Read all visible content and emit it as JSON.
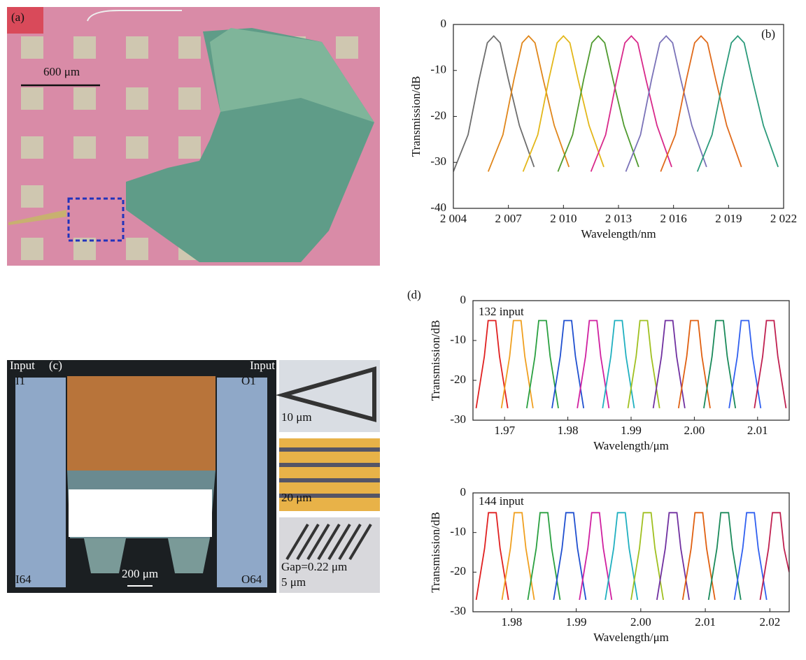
{
  "panels": {
    "a": {
      "label": "(a)",
      "scale": "600 μm"
    },
    "c": {
      "label": "(c)",
      "input_left": "Input",
      "input_right": "Input",
      "i1": "I1",
      "o1": "O1",
      "i64": "I64",
      "o64": "O64",
      "scale_main": "200 μm",
      "scale_1": "10 μm",
      "scale_2": "20 μm",
      "gap": "Gap=0.22 μm",
      "scale_3": "5 μm"
    }
  },
  "chart_data": [
    {
      "type": "line",
      "panel_label": "(b)",
      "xlabel": "Wavelength/nm",
      "ylabel": "Transmission/dB",
      "xlim": [
        2004,
        2022
      ],
      "ylim": [
        -40,
        0
      ],
      "xticks": [
        {
          "value": 2004,
          "label": "2 004"
        },
        {
          "value": 2007,
          "label": "2 007"
        },
        {
          "value": 2010,
          "label": "2 010"
        },
        {
          "value": 2013,
          "label": "2 013"
        },
        {
          "value": 2016,
          "label": "2 016"
        },
        {
          "value": 2019,
          "label": "2 019"
        },
        {
          "value": 2022,
          "label": "2 022"
        }
      ],
      "yticks": [
        -40,
        -30,
        -20,
        -10,
        0
      ],
      "series": [
        {
          "color": "#6d6d6d",
          "x": [
            2004.0,
            2004.8,
            2005.4,
            2005.85,
            2006.2,
            2006.55,
            2007.0,
            2007.6,
            2008.4
          ],
          "values": [
            -32,
            -24,
            -12,
            -4,
            -2.5,
            -4,
            -12,
            -22,
            -31
          ]
        },
        {
          "color": "#e0861a",
          "x": [
            2005.9,
            2006.7,
            2007.3,
            2007.75,
            2008.1,
            2008.45,
            2008.9,
            2009.5,
            2010.3
          ],
          "values": [
            -32,
            -24,
            -12,
            -4,
            -2.5,
            -4,
            -12,
            -22,
            -31
          ]
        },
        {
          "color": "#e3b719",
          "x": [
            2007.8,
            2008.6,
            2009.2,
            2009.65,
            2010.0,
            2010.35,
            2010.8,
            2011.4,
            2012.2
          ],
          "values": [
            -32,
            -24,
            -12,
            -4,
            -2.5,
            -4,
            -12,
            -22,
            -31
          ]
        },
        {
          "color": "#4f9a2e",
          "x": [
            2009.7,
            2010.5,
            2011.1,
            2011.55,
            2011.9,
            2012.25,
            2012.7,
            2013.3,
            2014.1
          ],
          "values": [
            -32,
            -24,
            -12,
            -4,
            -2.5,
            -4,
            -12,
            -22,
            -31
          ]
        },
        {
          "color": "#d8288a",
          "x": [
            2011.5,
            2012.3,
            2012.9,
            2013.35,
            2013.7,
            2014.05,
            2014.5,
            2015.1,
            2015.9
          ],
          "values": [
            -32,
            -24,
            -12,
            -4,
            -2.5,
            -4,
            -12,
            -22,
            -31
          ]
        },
        {
          "color": "#7a72b8",
          "x": [
            2013.4,
            2014.2,
            2014.8,
            2015.25,
            2015.6,
            2015.95,
            2016.4,
            2017.0,
            2017.8
          ],
          "values": [
            -32,
            -24,
            -12,
            -4,
            -2.5,
            -4,
            -12,
            -22,
            -31
          ]
        },
        {
          "color": "#e06a1a",
          "x": [
            2015.3,
            2016.1,
            2016.7,
            2017.15,
            2017.5,
            2017.85,
            2018.3,
            2018.9,
            2019.7
          ],
          "values": [
            -32,
            -24,
            -12,
            -4,
            -2.5,
            -4,
            -12,
            -22,
            -31
          ]
        },
        {
          "color": "#2a9a7a",
          "x": [
            2017.3,
            2018.1,
            2018.7,
            2019.15,
            2019.5,
            2019.85,
            2020.3,
            2020.9,
            2021.7
          ],
          "values": [
            -32,
            -24,
            -12,
            -4,
            -2.5,
            -4,
            -12,
            -22,
            -31
          ]
        }
      ]
    },
    {
      "type": "line",
      "panel_label": "(d)",
      "annotation": "132 input",
      "xlabel": "Wavelength/μm",
      "ylabel": "Transmission/dB",
      "xlim": [
        1.965,
        2.015
      ],
      "ylim": [
        -30,
        0
      ],
      "xticks": [
        1.97,
        1.98,
        1.99,
        {
          "value": 2,
          "label": "2.00"
        },
        2.01
      ],
      "yticks": [
        -30,
        -20,
        -10,
        0
      ],
      "series": [
        {
          "color": "#e02020",
          "x": [
            1.9655,
            1.9668,
            1.9674,
            1.9686,
            1.9692,
            1.9705
          ],
          "values": [
            -27,
            -14,
            -5,
            -5,
            -14,
            -27
          ]
        },
        {
          "color": "#f0a020",
          "x": [
            1.9695,
            1.9708,
            1.9714,
            1.9726,
            1.9732,
            1.9745
          ],
          "values": [
            -27,
            -14,
            -5,
            -5,
            -14,
            -27
          ]
        },
        {
          "color": "#2aa040",
          "x": [
            1.9735,
            1.9748,
            1.9754,
            1.9766,
            1.9772,
            1.9785
          ],
          "values": [
            -27,
            -14,
            -5,
            -5,
            -14,
            -27
          ]
        },
        {
          "color": "#2050d0",
          "x": [
            1.9775,
            1.9788,
            1.9794,
            1.9806,
            1.9812,
            1.9825
          ],
          "values": [
            -27,
            -14,
            -5,
            -5,
            -14,
            -27
          ]
        },
        {
          "color": "#d020a0",
          "x": [
            1.9815,
            1.9828,
            1.9834,
            1.9846,
            1.9852,
            1.9865
          ],
          "values": [
            -27,
            -14,
            -5,
            -5,
            -14,
            -27
          ]
        },
        {
          "color": "#20b0c0",
          "x": [
            1.9855,
            1.9868,
            1.9874,
            1.9886,
            1.9892,
            1.9905
          ],
          "values": [
            -27,
            -14,
            -5,
            -5,
            -14,
            -27
          ]
        },
        {
          "color": "#a0c020",
          "x": [
            1.9895,
            1.9908,
            1.9914,
            1.9926,
            1.9932,
            1.9945
          ],
          "values": [
            -27,
            -14,
            -5,
            -5,
            -14,
            -27
          ]
        },
        {
          "color": "#7030a0",
          "x": [
            1.9935,
            1.9948,
            1.9954,
            1.9966,
            1.9972,
            1.9985
          ],
          "values": [
            -27,
            -14,
            -5,
            -5,
            -14,
            -27
          ]
        },
        {
          "color": "#e06010",
          "x": [
            1.9975,
            1.9988,
            1.9994,
            2.0006,
            2.0012,
            2.0025
          ],
          "values": [
            -27,
            -14,
            -5,
            -5,
            -14,
            -27
          ]
        },
        {
          "color": "#1a8a5a",
          "x": [
            2.0015,
            2.0028,
            2.0034,
            2.0046,
            2.0052,
            2.0065
          ],
          "values": [
            -27,
            -14,
            -5,
            -5,
            -14,
            -27
          ]
        },
        {
          "color": "#3060f0",
          "x": [
            2.0055,
            2.0068,
            2.0074,
            2.0086,
            2.0092,
            2.0105
          ],
          "values": [
            -27,
            -14,
            -5,
            -5,
            -14,
            -27
          ]
        },
        {
          "color": "#c02050",
          "x": [
            2.0095,
            2.0108,
            2.0114,
            2.0126,
            2.0132,
            2.0145
          ],
          "values": [
            -27,
            -14,
            -5,
            -5,
            -14,
            -27
          ]
        }
      ]
    },
    {
      "type": "line",
      "annotation": "144 input",
      "xlabel": "Wavelength/μm",
      "ylabel": "Transmission/dB",
      "xlim": [
        1.974,
        2.023
      ],
      "ylim": [
        -30,
        0
      ],
      "xticks": [
        1.98,
        1.99,
        {
          "value": 2,
          "label": "2.00"
        },
        2.01,
        2.02
      ],
      "yticks": [
        -30,
        -20,
        -10,
        0
      ],
      "series": [
        {
          "color": "#e02020",
          "x": [
            1.9745,
            1.9758,
            1.9764,
            1.9776,
            1.9782,
            1.9795
          ],
          "values": [
            -27,
            -14,
            -5,
            -5,
            -14,
            -27
          ]
        },
        {
          "color": "#f0a020",
          "x": [
            1.9785,
            1.9798,
            1.9804,
            1.9816,
            1.9822,
            1.9835
          ],
          "values": [
            -27,
            -14,
            -5,
            -5,
            -14,
            -27
          ]
        },
        {
          "color": "#2aa040",
          "x": [
            1.9825,
            1.9838,
            1.9844,
            1.9856,
            1.9862,
            1.9875
          ],
          "values": [
            -27,
            -14,
            -5,
            -5,
            -14,
            -27
          ]
        },
        {
          "color": "#2050d0",
          "x": [
            1.9865,
            1.9878,
            1.9884,
            1.9896,
            1.9902,
            1.9915
          ],
          "values": [
            -27,
            -14,
            -5,
            -5,
            -14,
            -27
          ]
        },
        {
          "color": "#d020a0",
          "x": [
            1.9905,
            1.9918,
            1.9924,
            1.9936,
            1.9942,
            1.9955
          ],
          "values": [
            -27,
            -14,
            -5,
            -5,
            -14,
            -27
          ]
        },
        {
          "color": "#20b0c0",
          "x": [
            1.9945,
            1.9958,
            1.9964,
            1.9976,
            1.9982,
            1.9995
          ],
          "values": [
            -27,
            -14,
            -5,
            -5,
            -14,
            -27
          ]
        },
        {
          "color": "#a0c020",
          "x": [
            1.9985,
            1.9998,
            2.0004,
            2.0016,
            2.0022,
            2.0035
          ],
          "values": [
            -27,
            -14,
            -5,
            -5,
            -14,
            -27
          ]
        },
        {
          "color": "#7030a0",
          "x": [
            2.0025,
            2.0038,
            2.0044,
            2.0056,
            2.0062,
            2.0075
          ],
          "values": [
            -27,
            -14,
            -5,
            -5,
            -14,
            -27
          ]
        },
        {
          "color": "#e06010",
          "x": [
            2.0065,
            2.0078,
            2.0084,
            2.0096,
            2.0102,
            2.0115
          ],
          "values": [
            -27,
            -14,
            -5,
            -5,
            -14,
            -27
          ]
        },
        {
          "color": "#1a8a5a",
          "x": [
            2.0105,
            2.0118,
            2.0124,
            2.0136,
            2.0142,
            2.0155
          ],
          "values": [
            -27,
            -14,
            -5,
            -5,
            -14,
            -27
          ]
        },
        {
          "color": "#3060f0",
          "x": [
            2.0145,
            2.0158,
            2.0164,
            2.0176,
            2.0182,
            2.0195
          ],
          "values": [
            -27,
            -14,
            -5,
            -5,
            -14,
            -27
          ]
        },
        {
          "color": "#c02050",
          "x": [
            2.0185,
            2.0198,
            2.0204,
            2.0216,
            2.0222,
            2.023
          ],
          "values": [
            -27,
            -14,
            -5,
            -5,
            -14,
            -20
          ]
        }
      ]
    }
  ]
}
